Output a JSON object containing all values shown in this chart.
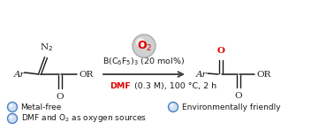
{
  "bg_color": "#ffffff",
  "arrow_color": "#444444",
  "text_color": "#1a1a1a",
  "red_color": "#dd0000",
  "catalyst_text": "B(C$_6$F$_5$)$_3$ (20 mol%)",
  "conditions_dmf": "DMF",
  "conditions_rest": " (0.3 M), 100 °C, 2 h",
  "bullet1": "Metal-free",
  "bullet2": "DMF and O$_2$ as oxygen sources",
  "bullet3": "Environmentally friendly",
  "o2_label": "O$_2$",
  "o2_sphere_color": "#d0d0d0",
  "o2_sphere_edge": "#aaaaaa",
  "bullet_face": "#cfe0f5",
  "bullet_edge": "#4a80c4",
  "fs_mol": 7.5,
  "fs_text": 6.8,
  "fs_bullet": 6.5,
  "fs_o2": 9
}
